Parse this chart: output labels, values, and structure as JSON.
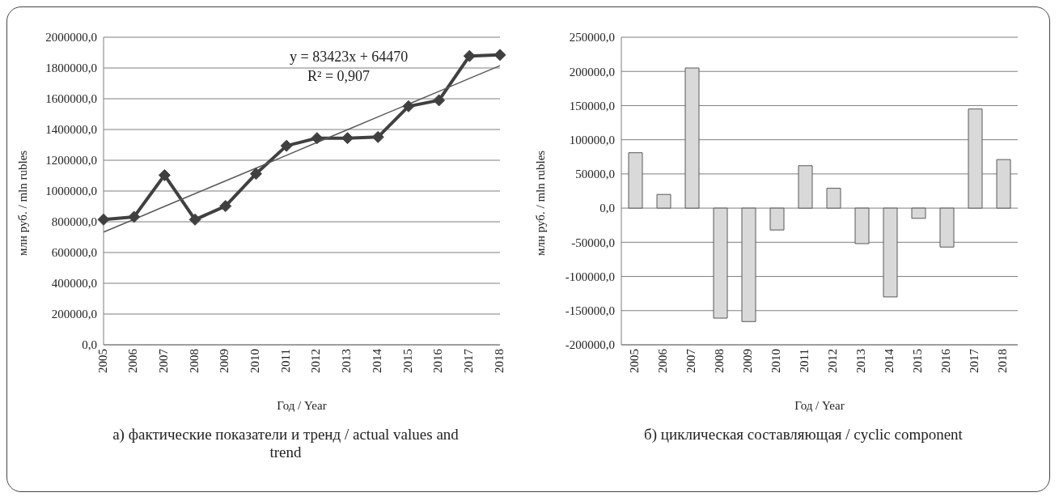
{
  "chart_data": [
    {
      "type": "line",
      "title": "а) фактические показатели и тренд / actual values and trend",
      "xlabel": "Год / Year",
      "ylabel": "млн руб. / mln rubles",
      "categories": [
        "2005",
        "2006",
        "2007",
        "2008",
        "2009",
        "2010",
        "2011",
        "2012",
        "2013",
        "2014",
        "2015",
        "2016",
        "2017",
        "2018"
      ],
      "series": [
        {
          "color": "#404040",
          "values": [
            814000,
            832000,
            1103000,
            814000,
            902000,
            1112000,
            1294000,
            1344000,
            1344000,
            1351000,
            1551000,
            1590000,
            1878000,
            1885000
          ]
        },
        {
          "color": "#595959",
          "marker": "none",
          "values": [
            733000,
            816000,
            900000,
            983000,
            1066000,
            1149000,
            1232000,
            1316000,
            1399000,
            1482000,
            1565000,
            1648000,
            1732000,
            1815000
          ]
        }
      ],
      "ylim": [
        0,
        2000000
      ],
      "yticks": [
        {
          "value": 0,
          "label": "0,0"
        },
        {
          "value": 200000,
          "label": "200000,0"
        },
        {
          "value": 400000,
          "label": "400000,0"
        },
        {
          "value": 600000,
          "label": "600000,0"
        },
        {
          "value": 800000,
          "label": "800000,0"
        },
        {
          "value": 1000000,
          "label": "1000000,0"
        },
        {
          "value": 1200000,
          "label": "1200000,0"
        },
        {
          "value": 1400000,
          "label": "1400000,0"
        },
        {
          "value": 1600000,
          "label": "1600000,0"
        },
        {
          "value": 1800000,
          "label": "1800000,0"
        },
        {
          "value": 2000000,
          "label": "2000000,0"
        }
      ],
      "annotations": [
        "y = 83423x + 64470",
        "R² = 0,907"
      ],
      "grid": "y",
      "legend": false,
      "marker": "diamond"
    },
    {
      "type": "bar",
      "title": "б) циклическая составляющая / cyclic component",
      "xlabel": "Год / Year",
      "ylabel": "млн руб. / mln rubles",
      "categories": [
        "2005",
        "2006",
        "2007",
        "2008",
        "2009",
        "2010",
        "2011",
        "2012",
        "2013",
        "2014",
        "2015",
        "2016",
        "2017",
        "2018"
      ],
      "series": [
        {
          "color": "#d9d9d9",
          "values": [
            81000,
            20000,
            205000,
            -161000,
            -166000,
            -32000,
            62000,
            29000,
            -52000,
            -130000,
            -15000,
            -57000,
            145000,
            71000
          ]
        }
      ],
      "ylim": [
        -200000,
        250000
      ],
      "yticks": [
        {
          "value": -200000,
          "label": "-200000,0"
        },
        {
          "value": -150000,
          "label": "-150000,0"
        },
        {
          "value": -100000,
          "label": "-100000,0"
        },
        {
          "value": -50000,
          "label": "-50000,0"
        },
        {
          "value": 0,
          "label": "0,0"
        },
        {
          "value": 50000,
          "label": "50000,0"
        },
        {
          "value": 100000,
          "label": "100000,0"
        },
        {
          "value": 150000,
          "label": "150000,0"
        },
        {
          "value": 200000,
          "label": "200000,0"
        },
        {
          "value": 250000,
          "label": "250000,0"
        }
      ],
      "grid": "y",
      "legend": false
    }
  ]
}
